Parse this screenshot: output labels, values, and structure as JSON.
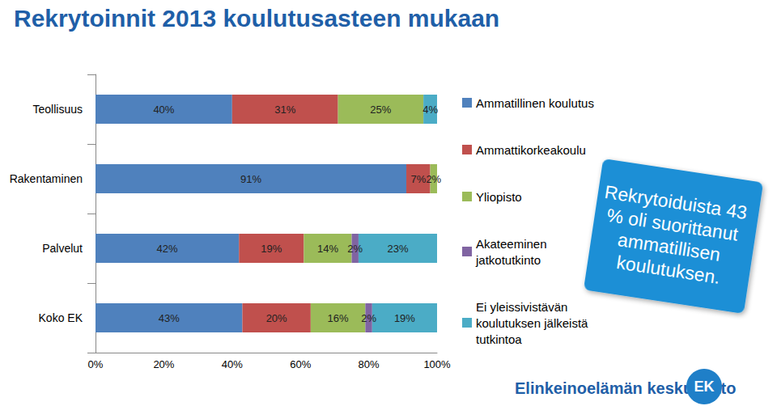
{
  "chart_data": {
    "type": "bar",
    "title": "Rekrytoinnit 2013 koulutusasteen mukaan",
    "orientation": "horizontal",
    "stacked": true,
    "data_labels": true,
    "grid": false,
    "legend": "right",
    "categories": [
      "Teollisuus",
      "Rakentaminen",
      "Palvelut",
      "Koko EK"
    ],
    "series": [
      {
        "name": "Ammatillinen koulutus",
        "color": "#4F81BD",
        "values": [
          40,
          91,
          42,
          43
        ],
        "value_labels": [
          "40%",
          "91%",
          "42%",
          "43%"
        ]
      },
      {
        "name": "Ammattikorkeakoulu",
        "color": "#C0504D",
        "values": [
          31,
          7,
          19,
          20
        ],
        "value_labels": [
          "31%",
          "7%",
          "19%",
          "20%"
        ]
      },
      {
        "name": "Yliopisto",
        "color": "#9BBB59",
        "values": [
          25,
          2,
          14,
          16
        ],
        "value_labels": [
          "25%",
          "2%",
          "14%",
          "16%"
        ]
      },
      {
        "name": "Akateeminen jatkotutkinto",
        "color": "#8064A2",
        "values": [
          null,
          null,
          2,
          2
        ],
        "value_labels": [
          null,
          null,
          "2%",
          "2%"
        ]
      },
      {
        "name": "Ei yleissivistävän koulutuksen jälkeistä tutkintoa",
        "color": "#4BACC6",
        "values": [
          4,
          null,
          23,
          19
        ],
        "value_labels": [
          "4%",
          null,
          "23%",
          "19%"
        ]
      }
    ],
    "xlim": [
      0,
      100
    ],
    "xticks": [
      {
        "value": 0,
        "label": "0%"
      },
      {
        "value": 20,
        "label": "20%"
      },
      {
        "value": 40,
        "label": "40%"
      },
      {
        "value": 60,
        "label": "60%"
      },
      {
        "value": 80,
        "label": "80%"
      },
      {
        "value": 100,
        "label": "100%"
      }
    ],
    "annotations": [
      "Rekrytoiduista 43 % oli suorittanut ammatillisen koulutuksen.",
      "Elinkeinoelämän keskusliitto",
      "EK"
    ]
  }
}
